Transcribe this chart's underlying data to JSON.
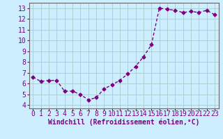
{
  "x": [
    0,
    1,
    2,
    3,
    4,
    5,
    6,
    7,
    8,
    9,
    10,
    11,
    12,
    13,
    14,
    15,
    16,
    17,
    18,
    19,
    20,
    21,
    22,
    23
  ],
  "y": [
    6.6,
    6.2,
    6.3,
    6.3,
    5.3,
    5.3,
    5.0,
    4.5,
    4.7,
    5.5,
    5.9,
    6.3,
    6.9,
    7.6,
    8.5,
    9.6,
    13.0,
    12.9,
    12.8,
    12.6,
    12.7,
    12.6,
    12.8,
    12.4
  ],
  "line_color": "#800080",
  "marker": "D",
  "marker_size": 2.5,
  "line_width": 1.0,
  "bg_color": "#cceeff",
  "grid_color": "#aacccc",
  "xlabel": "Windchill (Refroidissement éolien,°C)",
  "xlabel_fontsize": 7,
  "tick_fontsize": 7,
  "xlim": [
    -0.5,
    23.5
  ],
  "ylim": [
    3.7,
    13.5
  ],
  "yticks": [
    4,
    5,
    6,
    7,
    8,
    9,
    10,
    11,
    12,
    13
  ],
  "xticks": [
    0,
    1,
    2,
    3,
    4,
    5,
    6,
    7,
    8,
    9,
    10,
    11,
    12,
    13,
    14,
    15,
    16,
    17,
    18,
    19,
    20,
    21,
    22,
    23
  ]
}
